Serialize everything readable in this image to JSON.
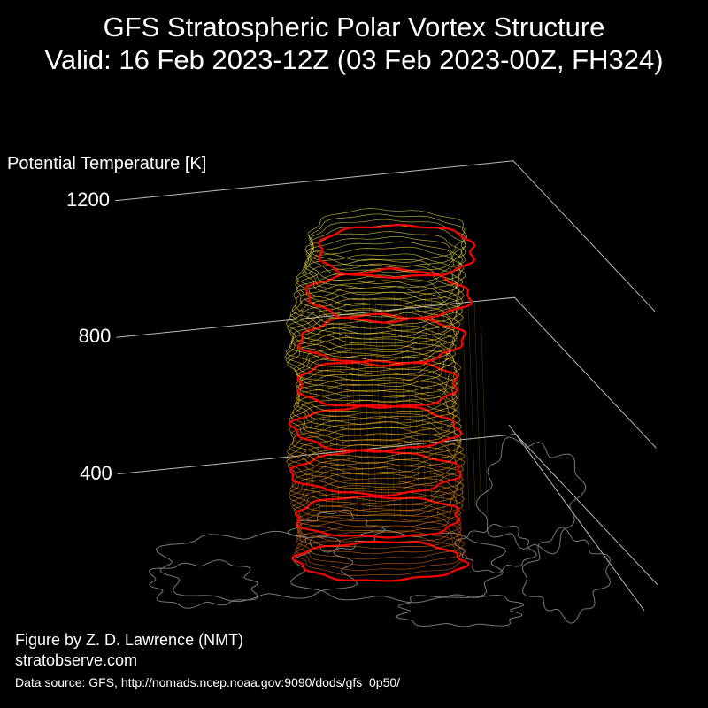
{
  "header": {
    "title_line1": "GFS Stratospheric Polar Vortex Structure",
    "title_line2": "Valid: 16 Feb 2023-12Z  (03 Feb 2023-00Z, FH324)"
  },
  "chart_data": {
    "type": "3d-isosurface",
    "zlabel": "Potential Temperature [K]",
    "z_ticks": [
      400,
      800,
      1200
    ],
    "zlim": [
      0,
      1250
    ],
    "grid": true,
    "vortex_levels": [
      {
        "theta": 300,
        "color": "#d06010"
      },
      {
        "theta": 350,
        "color": "#d46812"
      },
      {
        "theta": 400,
        "color": "#da7814"
      },
      {
        "theta": 450,
        "color": "#e08818"
      },
      {
        "theta": 500,
        "color": "#e6981c"
      },
      {
        "theta": 550,
        "color": "#eaa81e"
      },
      {
        "theta": 600,
        "color": "#eeb620"
      },
      {
        "theta": 650,
        "color": "#f0c024"
      },
      {
        "theta": 700,
        "color": "#f0c828"
      },
      {
        "theta": 750,
        "color": "#f0cc2e"
      },
      {
        "theta": 800,
        "color": "#eccf36"
      },
      {
        "theta": 850,
        "color": "#e8d03c"
      },
      {
        "theta": 900,
        "color": "#e4d040"
      },
      {
        "theta": 950,
        "color": "#e0ce44"
      },
      {
        "theta": 1000,
        "color": "#dcca48"
      }
    ],
    "highlight_color": "#ff0000",
    "grid_color": "#bbbbbb",
    "coast_color": "#777777"
  },
  "credits": {
    "line1": "Figure by Z. D. Lawrence (NMT)",
    "line2": "stratobserve.com",
    "source": "Data source: GFS, http://nomads.ncep.noaa.gov:9090/dods/gfs_0p50/"
  }
}
